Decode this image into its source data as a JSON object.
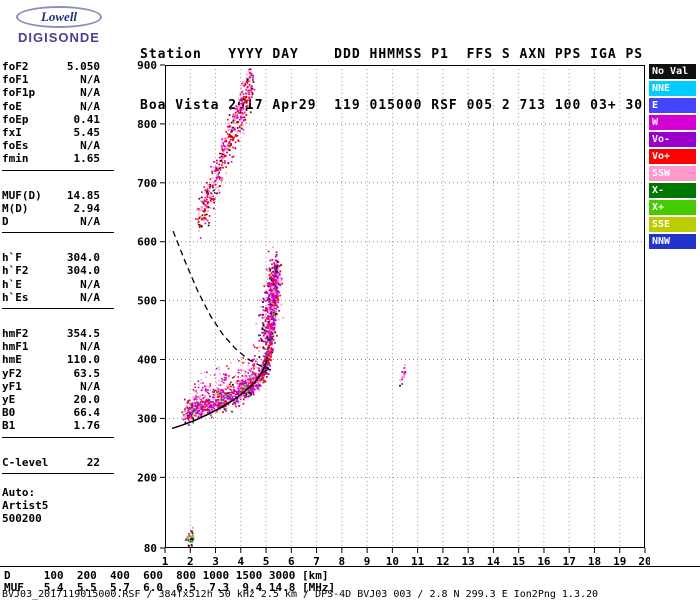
{
  "logo": {
    "name": "Lowell",
    "product": "DIGISONDE"
  },
  "header": {
    "line1": "Station   YYYY DAY    DDD HHMMSS P1  FFS S AXN PPS IGA PS",
    "line2": "Boa Vista 2017 Apr29  119 015000 RSF 005 2 713 100 03+ 30"
  },
  "params": {
    "groups": [
      {
        "rows": [
          {
            "label": "foF2",
            "value": "5.050"
          },
          {
            "label": "foF1",
            "value": "N/A"
          },
          {
            "label": "foF1p",
            "value": "N/A"
          },
          {
            "label": "foE",
            "value": "N/A"
          },
          {
            "label": "foEp",
            "value": "0.41"
          },
          {
            "label": "fxI",
            "value": "5.45"
          },
          {
            "label": "foEs",
            "value": "N/A"
          },
          {
            "label": "fmin",
            "value": "1.65"
          }
        ]
      },
      {
        "rows": [
          {
            "label": "MUF(D)",
            "value": "14.85"
          },
          {
            "label": "M(D)",
            "value": "2.94"
          },
          {
            "label": "D",
            "value": "N/A"
          }
        ]
      },
      {
        "rows": [
          {
            "label": "h`F",
            "value": "304.0"
          },
          {
            "label": "h`F2",
            "value": "304.0"
          },
          {
            "label": "h`E",
            "value": "N/A"
          },
          {
            "label": "h`Es",
            "value": "N/A"
          }
        ]
      },
      {
        "rows": [
          {
            "label": "hmF2",
            "value": "354.5"
          },
          {
            "label": "hmF1",
            "value": "N/A"
          },
          {
            "label": "hmE",
            "value": "110.0"
          },
          {
            "label": "yF2",
            "value": "63.5"
          },
          {
            "label": "yF1",
            "value": "N/A"
          },
          {
            "label": "yE",
            "value": "20.0"
          },
          {
            "label": "B0",
            "value": "66.4"
          },
          {
            "label": "B1",
            "value": "1.76"
          }
        ]
      },
      {
        "rows": [
          {
            "label": "C-level",
            "value": "22"
          }
        ]
      }
    ],
    "footer": [
      "Auto:",
      "Artist5",
      "500200"
    ]
  },
  "legend": {
    "items": [
      {
        "label": "No Val",
        "color": "#101010"
      },
      {
        "label": "NNE",
        "color": "#00CCFF"
      },
      {
        "label": "E",
        "color": "#4444FF"
      },
      {
        "label": "W",
        "color": "#D400D4"
      },
      {
        "label": "Vo-",
        "color": "#9900CC"
      },
      {
        "label": "Vo+",
        "color": "#FF0000"
      },
      {
        "label": "SSW",
        "color": "#FF99CC"
      },
      {
        "label": "X-",
        "color": "#007700"
      },
      {
        "label": "X+",
        "color": "#44CC00"
      },
      {
        "label": "SSE",
        "color": "#BBCC00"
      },
      {
        "label": "NNW",
        "color": "#2233CC"
      }
    ]
  },
  "bottom": {
    "d_row": "D     100  200  400  600  800 1000 1500 3000 [km]",
    "muf_row": "MUF   5.4  5.5  5.7  6.0  6.5  7.3  9.4 14.8 [MHz]",
    "footer": "BVJ03_2017119015000.RSF / 384fx512h 50 kHz 2.5 km / DPS-4D BVJ03 003 / 2.8 N 299.3 E Ion2Png 1.3.20"
  },
  "chart_data": {
    "type": "scatter",
    "title": "Digisonde ionogram, Boa Vista, 2017 Apr29 day 119 01:50:00",
    "xlabel": "[MHz]",
    "ylabel": "[km]",
    "xlim": [
      1,
      20
    ],
    "ylim": [
      80,
      900
    ],
    "x_ticks": [
      1,
      2,
      3,
      4,
      5,
      6,
      7,
      8,
      9,
      10,
      11,
      12,
      13,
      14,
      15,
      16,
      17,
      18,
      19,
      20
    ],
    "y_ticks": [
      900,
      800,
      700,
      600,
      500,
      400,
      300,
      200,
      80
    ],
    "grid_x": [
      2,
      3,
      4,
      5,
      6,
      7,
      8,
      9,
      10,
      11,
      12,
      13,
      14,
      15,
      16,
      17,
      18,
      19
    ],
    "grid_y": [
      200,
      300,
      400,
      500,
      600,
      700,
      800
    ],
    "legend_position": "right",
    "profile_curve": {
      "name": "electron-density-profile",
      "style": "solid",
      "points": [
        [
          1.28,
          283
        ],
        [
          1.7,
          289
        ],
        [
          2.2,
          297
        ],
        [
          2.7,
          307
        ],
        [
          3.2,
          318
        ],
        [
          3.7,
          331
        ],
        [
          4.1,
          344
        ],
        [
          4.5,
          359
        ],
        [
          4.75,
          372
        ],
        [
          4.95,
          388
        ],
        [
          5.03,
          399
        ]
      ]
    },
    "transmission_curve": {
      "name": "muf-transmission-curve",
      "style": "dashed",
      "points": [
        [
          1.32,
          618
        ],
        [
          1.8,
          566
        ],
        [
          2.3,
          516
        ],
        [
          2.8,
          474
        ],
        [
          3.3,
          442
        ],
        [
          3.8,
          418
        ],
        [
          4.3,
          400
        ],
        [
          4.8,
          389
        ],
        [
          5.25,
          381
        ]
      ]
    },
    "traces": [
      {
        "name": "f2-ordinary-trace",
        "count": 1100,
        "size": 1.8,
        "spread_km": 9,
        "f_jitter": 0.06,
        "points": [
          [
            1.78,
            308
          ],
          [
            2.2,
            314
          ],
          [
            2.7,
            320
          ],
          [
            3.2,
            328
          ],
          [
            3.7,
            338
          ],
          [
            4.1,
            347
          ],
          [
            4.45,
            356
          ],
          [
            4.7,
            366
          ],
          [
            4.9,
            380
          ],
          [
            5.05,
            398
          ],
          [
            5.15,
            420
          ],
          [
            5.25,
            455
          ],
          [
            5.32,
            495
          ],
          [
            5.38,
            535
          ],
          [
            5.45,
            558
          ]
        ],
        "colors": [
          [
            "#D400D4",
            0.42
          ],
          [
            "#FF0000",
            0.16
          ],
          [
            "#FF99CC",
            0.14
          ],
          [
            "#9900CC",
            0.08
          ],
          [
            "#2233CC",
            0.04
          ],
          [
            "#009900",
            0.06
          ],
          [
            "#BBBB00",
            0.05
          ],
          [
            "#101010",
            0.05
          ]
        ]
      },
      {
        "name": "f2-diffuse-spread",
        "count": 300,
        "size": 1.6,
        "spread_km": 16,
        "f_jitter": 0.08,
        "points": [
          [
            2.1,
            332
          ],
          [
            2.7,
            340
          ],
          [
            3.3,
            350
          ],
          [
            3.9,
            362
          ],
          [
            4.4,
            375
          ],
          [
            4.7,
            388
          ]
        ],
        "colors": [
          [
            "#FF99CC",
            0.4
          ],
          [
            "#D400D4",
            0.3
          ],
          [
            "#FF0000",
            0.2
          ],
          [
            "#9900CC",
            0.1
          ]
        ]
      },
      {
        "name": "cusp-spread",
        "count": 340,
        "size": 1.8,
        "spread_km": 22,
        "f_jitter": 0.15,
        "points": [
          [
            4.95,
            430
          ],
          [
            5.05,
            460
          ],
          [
            5.15,
            490
          ],
          [
            5.3,
            520
          ],
          [
            5.42,
            548
          ]
        ],
        "colors": [
          [
            "#D400D4",
            0.3
          ],
          [
            "#FF0000",
            0.25
          ],
          [
            "#FF99CC",
            0.2
          ],
          [
            "#9900CC",
            0.1
          ],
          [
            "#2233CC",
            0.05
          ],
          [
            "#101010",
            0.1
          ]
        ]
      },
      {
        "name": "second-reflection-trace",
        "count": 520,
        "size": 1.7,
        "spread_km": 17,
        "f_jitter": 0.09,
        "points": [
          [
            2.35,
            638
          ],
          [
            2.6,
            662
          ],
          [
            2.85,
            690
          ],
          [
            3.1,
            718
          ],
          [
            3.35,
            746
          ],
          [
            3.6,
            775
          ],
          [
            3.85,
            805
          ],
          [
            4.1,
            832
          ],
          [
            4.3,
            858
          ],
          [
            4.4,
            868
          ]
        ],
        "colors": [
          [
            "#D400D4",
            0.28
          ],
          [
            "#FF0000",
            0.28
          ],
          [
            "#FF99CC",
            0.22
          ],
          [
            "#990000",
            0.12
          ],
          [
            "#101010",
            0.1
          ]
        ]
      },
      {
        "name": "echo-cluster-10mhz",
        "count": 16,
        "size": 1.8,
        "spread_km": 6,
        "f_jitter": 0.05,
        "points": [
          [
            10.35,
            362
          ],
          [
            10.42,
            372
          ],
          [
            10.5,
            382
          ]
        ],
        "colors": [
          [
            "#D400D4",
            0.5
          ],
          [
            "#FF99CC",
            0.3
          ],
          [
            "#101010",
            0.2
          ]
        ]
      },
      {
        "name": "e-region-dots",
        "count": 38,
        "size": 1.7,
        "spread_km": 7,
        "f_jitter": 0.07,
        "points": [
          [
            1.92,
            86
          ],
          [
            2.0,
            94
          ],
          [
            2.08,
            102
          ]
        ],
        "colors": [
          [
            "#009900",
            0.35
          ],
          [
            "#101010",
            0.25
          ],
          [
            "#D400D4",
            0.25
          ],
          [
            "#BBBB00",
            0.15
          ]
        ]
      }
    ]
  }
}
